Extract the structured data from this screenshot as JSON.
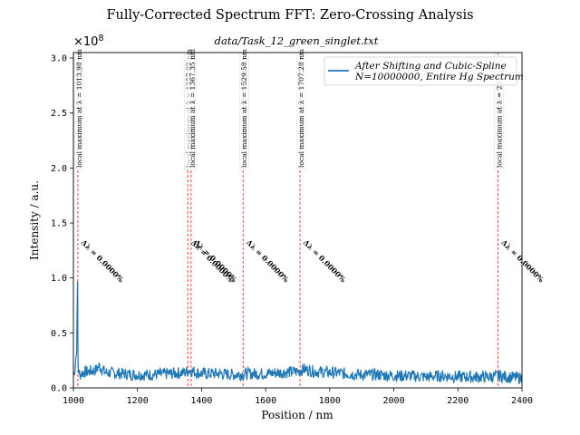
{
  "chart_data": {
    "type": "line",
    "title": "Fully-Corrected Spectrum FFT: Zero-Crossing Analysis",
    "subtitle": "data/Task_12_green_singlet.txt",
    "xlabel": "Position / nm",
    "ylabel": "Intensity / a.u.",
    "y_multiplier_label": "×10",
    "y_multiplier_exponent": "8",
    "xlim": [
      1000,
      2400
    ],
    "ylim": [
      0,
      3.05
    ],
    "x_ticks": [
      1000,
      1200,
      1400,
      1600,
      1800,
      2000,
      2200,
      2400
    ],
    "x_tick_labels": [
      "1000",
      "1200",
      "1400",
      "1600",
      "1800",
      "2000",
      "2200",
      "2400"
    ],
    "y_ticks": [
      0,
      0.5,
      1.0,
      1.5,
      2.0,
      2.5,
      3.0
    ],
    "y_tick_labels": [
      "0.0",
      "0.5",
      "1.0",
      "1.5",
      "2.0",
      "2.5",
      "3.0"
    ],
    "grid": false,
    "legend": {
      "placement": "top-right",
      "entries": [
        {
          "line1": "After Shifting and Cubic-Spline",
          "line2": "N=10000000, Entire Hg Spectrum",
          "color": "#1f77b4"
        }
      ]
    },
    "series": [
      {
        "name": "After Shifting and Cubic-Spline",
        "color": "#1f77b4",
        "x": [
          1000,
          1005,
          1010,
          1013,
          1014,
          1015,
          1017,
          1020,
          1030,
          1050,
          1070,
          1080,
          1100,
          1150,
          1200,
          1250,
          1300,
          1350,
          1360,
          1400,
          1450,
          1500,
          1550,
          1600,
          1650,
          1700,
          1720,
          1750,
          1800,
          1850,
          1900,
          1950,
          2000,
          2050,
          2100,
          2150,
          2200,
          2250,
          2300,
          2330,
          2350,
          2400
        ],
        "y": [
          0.12,
          0.18,
          0.35,
          0.97,
          0.4,
          0.18,
          0.15,
          0.12,
          0.14,
          0.15,
          0.16,
          0.2,
          0.14,
          0.13,
          0.12,
          0.12,
          0.13,
          0.14,
          0.16,
          0.13,
          0.13,
          0.12,
          0.13,
          0.13,
          0.14,
          0.15,
          0.17,
          0.15,
          0.14,
          0.13,
          0.12,
          0.12,
          0.11,
          0.11,
          0.1,
          0.11,
          0.1,
          0.1,
          0.1,
          0.11,
          0.1,
          0.09
        ]
      }
    ],
    "vlines": [
      {
        "x": 1013.98,
        "label": "local maximum at λ = 1013.98 nm",
        "delta": "Δλ = 0.0000%"
      },
      {
        "x": 1357.02,
        "label": "local maximum at λ = 1357.02 nm",
        "delta": "Δλ = 0.0000%"
      },
      {
        "x": 1367.35,
        "label": "local maximum at λ = 1367.35 nm",
        "delta": "Δλ = 0.0000%"
      },
      {
        "x": 1529.58,
        "label": "local maximum at λ = 1529.58 nm",
        "delta": "Δλ = 0.0000%"
      },
      {
        "x": 1707.28,
        "label": "local maximum at λ = 1707.28 nm",
        "delta": "Δλ = 0.0000%"
      },
      {
        "x": 2325.42,
        "label": "local maximum at λ = 23",
        "delta": "Δλ = 0.0000%"
      }
    ]
  }
}
